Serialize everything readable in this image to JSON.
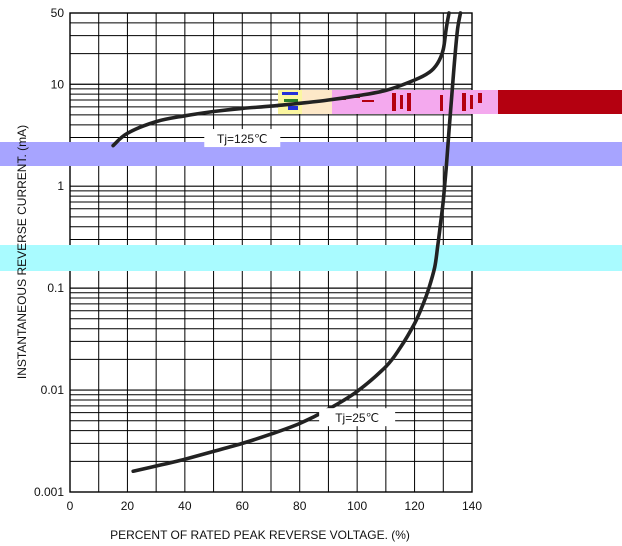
{
  "chart_data": {
    "type": "line",
    "xlabel": "PERCENT OF RATED PEAK REVERSE VOLTAGE. (%)",
    "ylabel": "INSTANTANEOUS REVERSE CURRENT. (mA)",
    "xlim": [
      0,
      140
    ],
    "ylim": [
      0.001,
      50
    ],
    "yscale": "log",
    "grid": true,
    "x_ticks": [
      "0",
      "20",
      "40",
      "60",
      "80",
      "100",
      "120",
      "140"
    ],
    "y_ticks": [
      "0.001",
      "0.01",
      "0.1",
      "1",
      "10",
      "50"
    ],
    "series": [
      {
        "name": "Tj=125℃",
        "x": [
          15,
          20,
          30,
          40,
          50,
          60,
          70,
          80,
          90,
          100,
          110,
          120,
          125,
          128,
          130,
          131,
          132
        ],
        "y": [
          2.5,
          3.3,
          4.3,
          4.9,
          5.4,
          5.8,
          6.1,
          6.5,
          7.0,
          7.7,
          8.7,
          11.0,
          13.0,
          16.0,
          22.0,
          35.0,
          50.0
        ]
      },
      {
        "name": "Tj=25℃",
        "x": [
          22,
          30,
          40,
          50,
          60,
          70,
          80,
          90,
          100,
          110,
          115,
          120,
          123,
          125,
          127,
          128,
          129,
          130,
          131,
          132,
          133,
          134,
          135,
          136
        ],
        "y": [
          0.0016,
          0.0018,
          0.0021,
          0.0025,
          0.003,
          0.0037,
          0.0047,
          0.0065,
          0.0097,
          0.017,
          0.026,
          0.045,
          0.07,
          0.1,
          0.16,
          0.25,
          0.42,
          0.72,
          1.5,
          3.5,
          8.0,
          18.0,
          35.0,
          50.0
        ]
      }
    ],
    "annotations": [
      {
        "text": "Tj=125℃",
        "x": 60,
        "y": 2.9
      },
      {
        "text": "Tj=25℃",
        "x": 100,
        "y": 0.0053
      }
    ]
  },
  "colors": {
    "curve": "#222222",
    "grid": "#000000",
    "overlay_band_blue": "#a7a4ff",
    "overlay_band_cyan": "#a9fbff",
    "overlay_pink": "#f4a9ee",
    "overlay_darkred": "#b40010"
  }
}
